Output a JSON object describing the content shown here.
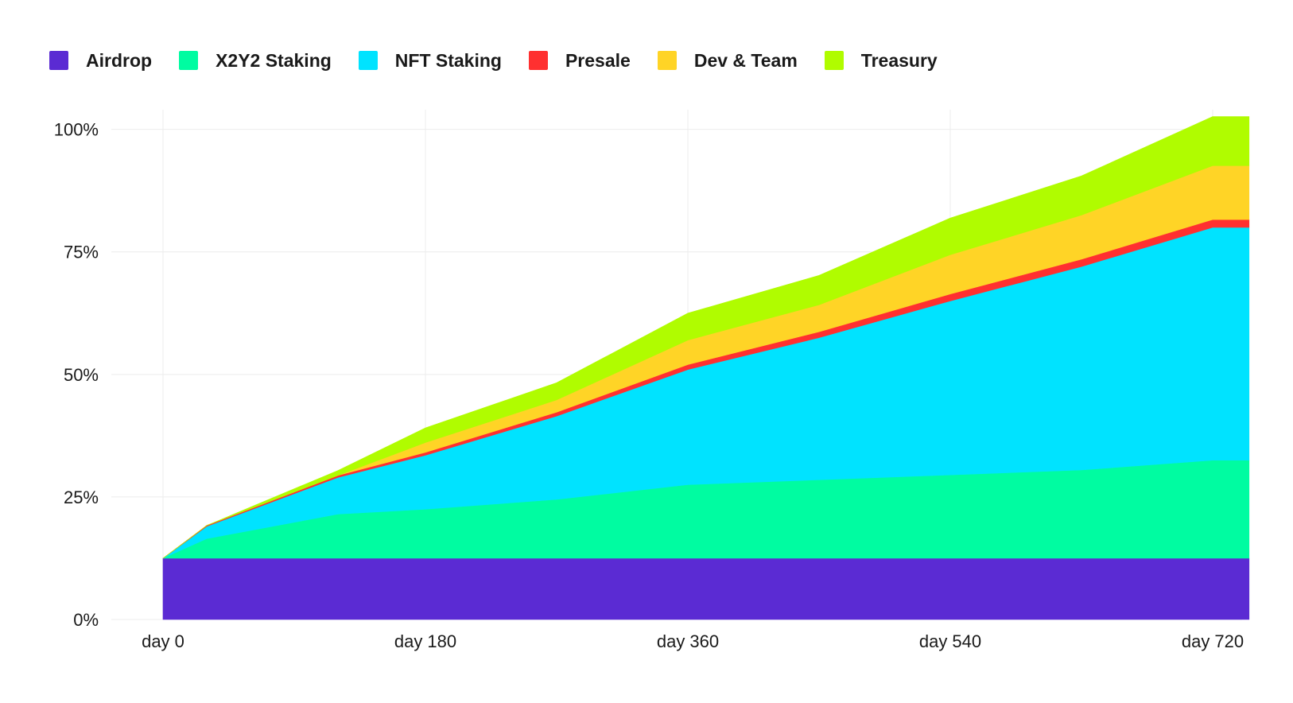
{
  "chart_data": {
    "type": "area",
    "stacked": true,
    "title": "",
    "xlabel": "",
    "ylabel": "",
    "x_unit": "day",
    "xlim": [
      0,
      745
    ],
    "ylim": [
      0,
      1.04
    ],
    "grid": true,
    "legend_position": "top-left",
    "x_ticks": [
      {
        "value": 0,
        "label": "day 0"
      },
      {
        "value": 180,
        "label": "day 180"
      },
      {
        "value": 360,
        "label": "day 360"
      },
      {
        "value": 540,
        "label": "day 540"
      },
      {
        "value": 720,
        "label": "day 720"
      }
    ],
    "y_ticks": [
      {
        "value": 0,
        "label": "0%"
      },
      {
        "value": 0.25,
        "label": "25%"
      },
      {
        "value": 0.5,
        "label": "50%"
      },
      {
        "value": 0.75,
        "label": "75%"
      },
      {
        "value": 1.0,
        "label": "100%"
      }
    ],
    "x": [
      0,
      30,
      120,
      180,
      270,
      360,
      450,
      540,
      630,
      720,
      745
    ],
    "series": [
      {
        "name": "Airdrop",
        "color": "#5b2bd3",
        "values": [
          0.125,
          0.125,
          0.125,
          0.125,
          0.125,
          0.125,
          0.125,
          0.125,
          0.125,
          0.125,
          0.125
        ]
      },
      {
        "name": "X2Y2 Staking",
        "color": "#00fca1",
        "values": [
          0,
          0.04,
          0.09,
          0.1,
          0.12,
          0.15,
          0.16,
          0.17,
          0.18,
          0.2,
          0.2
        ]
      },
      {
        "name": "NFT Staking",
        "color": "#00e3ff",
        "values": [
          0,
          0.025,
          0.075,
          0.11,
          0.17,
          0.235,
          0.29,
          0.355,
          0.415,
          0.475,
          0.475
        ]
      },
      {
        "name": "Presale",
        "color": "#ff3030",
        "values": [
          0,
          0.002,
          0.004,
          0.006,
          0.008,
          0.01,
          0.012,
          0.014,
          0.015,
          0.016,
          0.016
        ]
      },
      {
        "name": "Dev & Team",
        "color": "#ffd426",
        "values": [
          0,
          0,
          0,
          0.02,
          0.025,
          0.05,
          0.055,
          0.08,
          0.09,
          0.11,
          0.11
        ]
      },
      {
        "name": "Treasury",
        "color": "#b0fc00",
        "values": [
          0,
          0,
          0.01,
          0.03,
          0.035,
          0.055,
          0.06,
          0.075,
          0.08,
          0.1,
          0.1
        ]
      }
    ]
  }
}
